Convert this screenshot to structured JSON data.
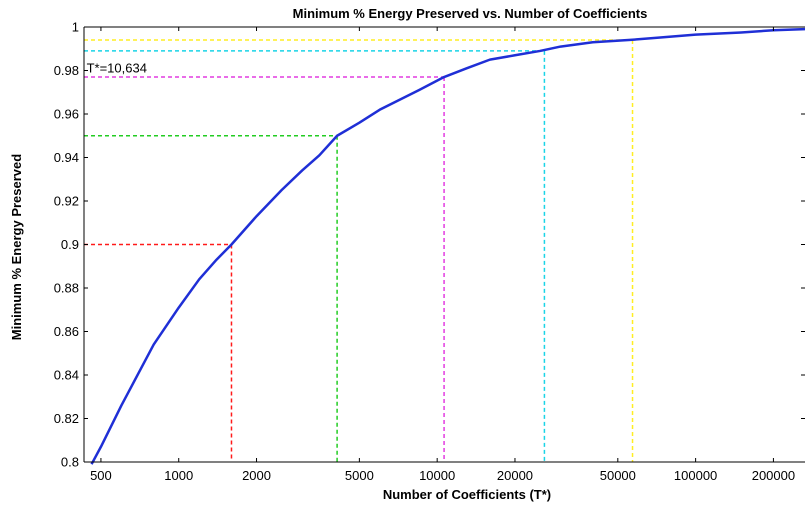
{
  "chart_data": {
    "type": "line",
    "title": "Minimum % Energy Preserved vs. Number of Coefficients",
    "xlabel": "Number of Coefficients (T*)",
    "ylabel": "Minimum % Energy Preserved",
    "xscale": "log",
    "xlim": [
      430,
      265000
    ],
    "ylim": [
      0.8,
      1.0
    ],
    "grid": false,
    "x_ticks": [
      500,
      1000,
      2000,
      5000,
      10000,
      20000,
      50000,
      100000,
      200000
    ],
    "x_tick_labels": [
      "500",
      "1000",
      "2000",
      "5000",
      "10000",
      "20000",
      "50000",
      "100000",
      "200000"
    ],
    "y_ticks": [
      0.8,
      0.82,
      0.84,
      0.86,
      0.88,
      0.9,
      0.92,
      0.94,
      0.96,
      0.98,
      1.0
    ],
    "y_tick_labels": [
      "0.8",
      "0.82",
      "0.84",
      "0.86",
      "0.88",
      "0.9",
      "0.92",
      "0.94",
      "0.96",
      "0.98",
      "1"
    ],
    "series": [
      {
        "color": "#1f2fd6",
        "x": [
          460,
          500,
          600,
          700,
          800,
          1000,
          1200,
          1400,
          1600,
          2000,
          2500,
          3000,
          3500,
          4100,
          5000,
          6000,
          7000,
          8500,
          10634,
          13000,
          16000,
          20000,
          25000,
          30000,
          40000,
          55000,
          70000,
          100000,
          150000,
          200000,
          265000
        ],
        "y": [
          0.799,
          0.807,
          0.826,
          0.841,
          0.854,
          0.871,
          0.884,
          0.893,
          0.9,
          0.913,
          0.925,
          0.934,
          0.941,
          0.95,
          0.956,
          0.962,
          0.966,
          0.971,
          0.977,
          0.981,
          0.985,
          0.987,
          0.989,
          0.991,
          0.993,
          0.994,
          0.995,
          0.9965,
          0.9975,
          0.9985,
          0.999
        ]
      }
    ],
    "reference_lines": [
      {
        "color": "#ff1a1a",
        "x": 1600,
        "y": 0.9
      },
      {
        "color": "#22cc22",
        "x": 4100,
        "y": 0.95
      },
      {
        "color": "#e23be0",
        "x": 10634,
        "y": 0.977
      },
      {
        "color": "#19d4e6",
        "x": 26000,
        "y": 0.989
      },
      {
        "color": "#ffee22",
        "x": 57000,
        "y": 0.994
      }
    ],
    "annotations": [
      {
        "text": "T*=10,634",
        "x": 440,
        "y": 0.979
      }
    ],
    "axis_color": "#000000"
  }
}
